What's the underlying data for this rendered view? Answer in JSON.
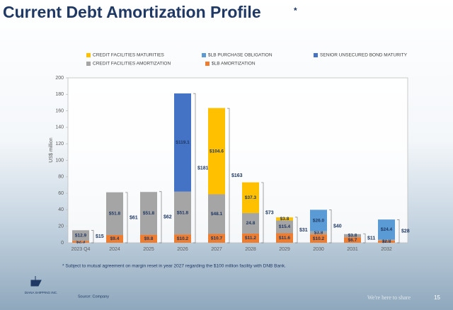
{
  "title": "Current Debt Amortization Profile",
  "title_mark": "*",
  "chart_data": {
    "type": "bar",
    "stacked": true,
    "y_label": "US$ million",
    "categories": [
      "2023 Q4",
      "2024",
      "2025",
      "2026",
      "2027",
      "2028",
      "2029",
      "2030",
      "2031",
      "2032"
    ],
    "series": [
      {
        "name": "$LB AMORTIZATION",
        "color": "#ed7d31",
        "values": [
          2.3,
          9.4,
          9.8,
          10.2,
          10.7,
          11.2,
          11.6,
          10.2,
          6.7,
          2.8
        ],
        "value_labels": [
          "$2.3",
          "$9.4",
          "$9.8",
          "$10.2",
          "$10.7",
          "$11.2",
          "$11.6",
          "$10.2",
          "$6.7",
          "$2.8"
        ]
      },
      {
        "name": "CREDIT FACILITIES AMORTIZATION",
        "color": "#a5a5a5",
        "values": [
          12.9,
          51.8,
          51.8,
          51.8,
          48.1,
          24.8,
          15.4,
          3.8,
          3.8,
          1.0
        ],
        "value_labels": [
          "$12.9",
          "$51.8",
          "$51.8",
          "$51.8",
          "$48.1",
          "24.8",
          "$15.4",
          "$3.8",
          "$3.8",
          "$1.0"
        ]
      },
      {
        "name": "$LB PURCHASE OBLIGATION",
        "color": "#5b9bd5",
        "values": [
          null,
          null,
          null,
          null,
          null,
          null,
          null,
          26.0,
          null,
          24.4
        ],
        "value_labels": [
          null,
          null,
          null,
          null,
          null,
          null,
          null,
          "$26.0",
          null,
          "$24.4"
        ]
      },
      {
        "name": "CREDIT FACILITIES MATURITIES",
        "color": "#ffc000",
        "values": [
          null,
          null,
          null,
          null,
          104.6,
          37.3,
          3.8,
          null,
          null,
          null
        ],
        "value_labels": [
          null,
          null,
          null,
          null,
          "$104.6",
          "$37.3",
          "$3.8",
          null,
          null,
          null
        ]
      },
      {
        "name": "SENIOR UNSECURED BOND MATURITY",
        "color": "#4472c4",
        "values": [
          null,
          null,
          null,
          119.1,
          null,
          null,
          null,
          null,
          null,
          null
        ],
        "value_labels": [
          null,
          null,
          null,
          "$119.1",
          null,
          null,
          null,
          null,
          null,
          null
        ]
      }
    ],
    "totals": {
      "values": [
        15,
        61,
        62,
        181,
        163,
        73,
        31,
        40,
        11,
        28
      ],
      "value_labels": [
        "$15",
        "$61",
        "$62",
        "$181",
        "$163",
        "$73",
        "$31",
        "$40",
        "$11",
        "$28"
      ]
    },
    "ylim": [
      0,
      200
    ],
    "yticks": [
      0,
      20,
      40,
      60,
      80,
      100,
      120,
      140,
      160,
      180,
      200
    ],
    "grid": false
  },
  "footnote": "*  Subject to mutual agreement on margin reset in year 2027 regarding the $100 million facility with DNB Bank.",
  "source": "Source: Company",
  "logo": "DIANA SHIPPING INC.",
  "tagline": "We're here to share",
  "page_number": "15"
}
